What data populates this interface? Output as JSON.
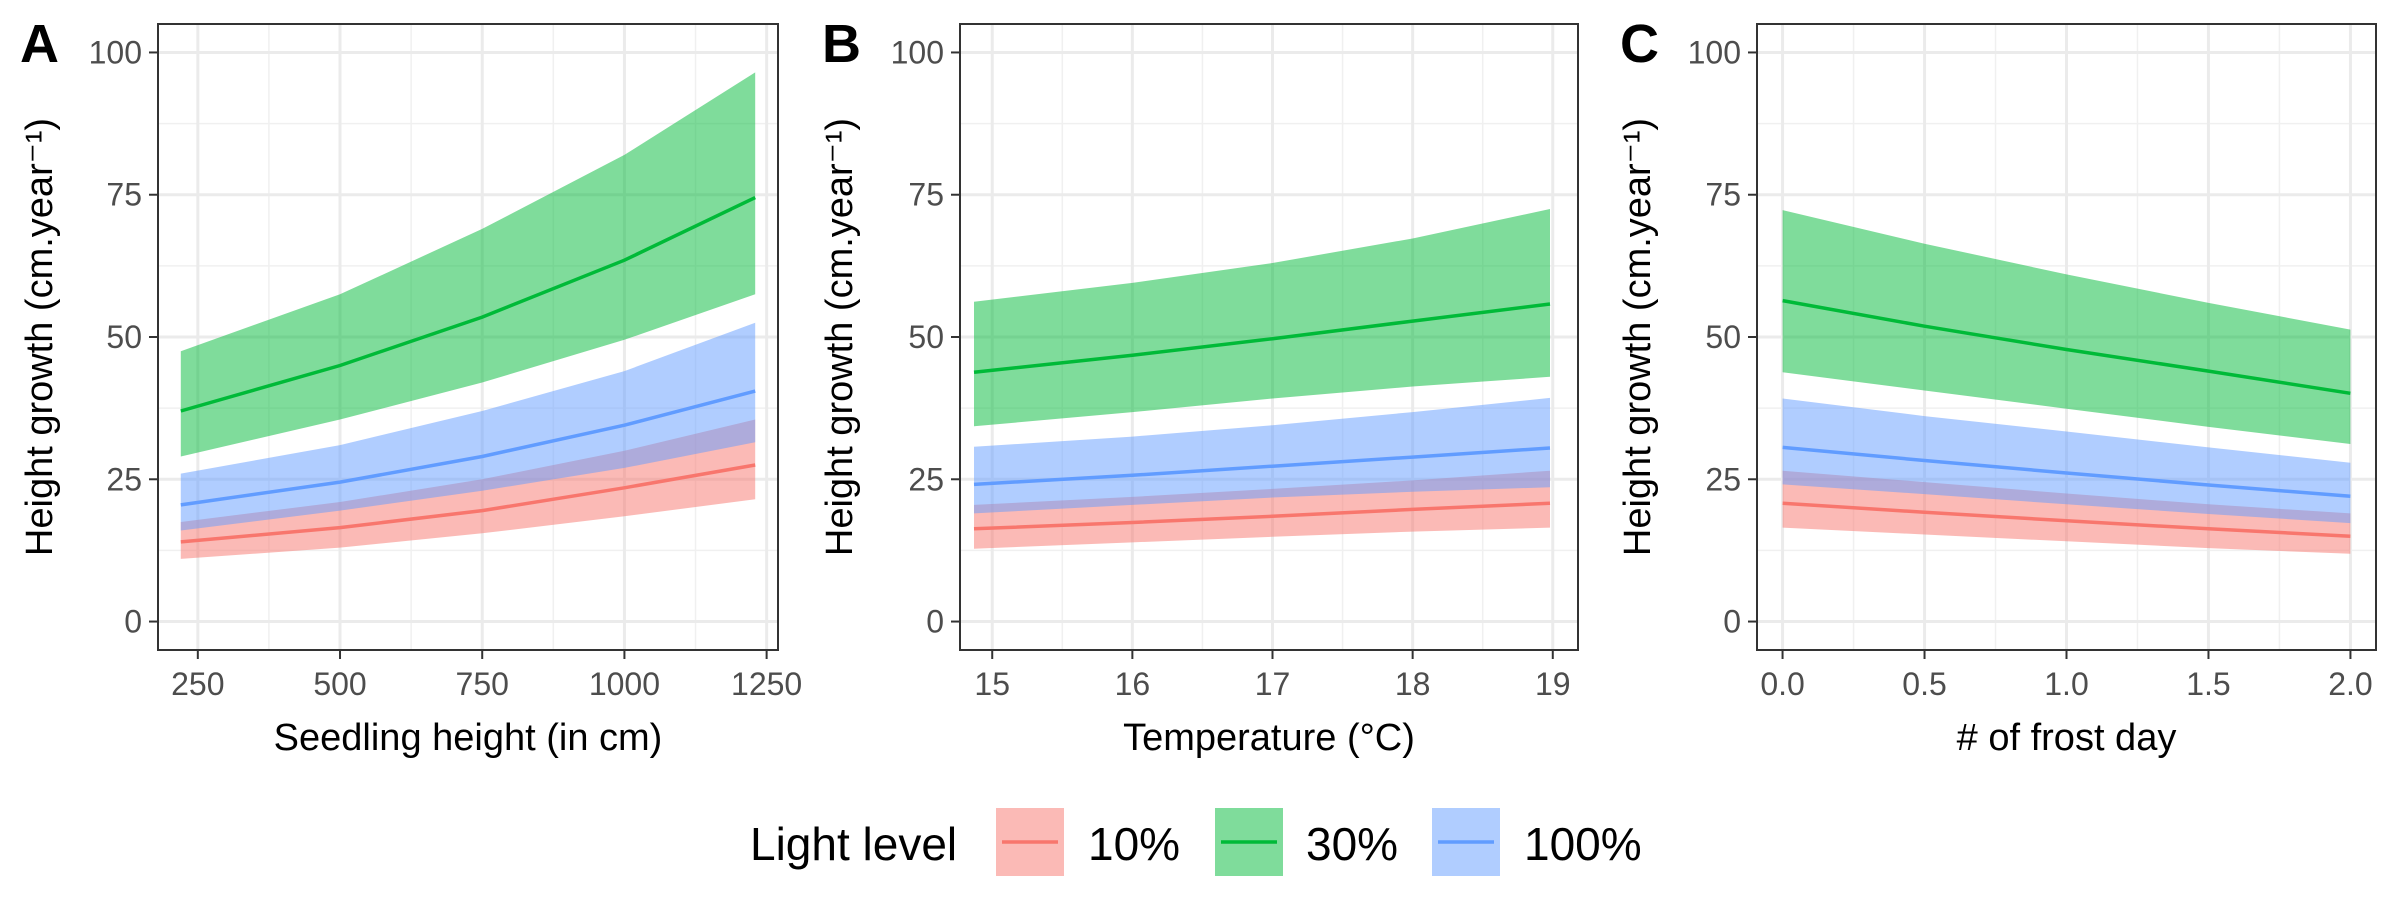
{
  "chart_data": [
    {
      "type": "line",
      "panel_label": "A",
      "xlabel": "Seedling height (in cm)",
      "ylabel": "Height growth (cm.year⁻¹)",
      "xlim": [
        180,
        1270
      ],
      "ylim": [
        -5,
        105
      ],
      "xticks": [
        250,
        500,
        750,
        1000,
        1250
      ],
      "xtick_labels": [
        "250",
        "500",
        "750",
        "1000",
        "1250"
      ],
      "yticks": [
        0,
        25,
        50,
        75,
        100
      ],
      "ytick_labels": [
        "0",
        "25",
        "50",
        "75",
        "100"
      ],
      "grid": true,
      "series": [
        {
          "key": "10",
          "x": [
            220,
            500,
            750,
            1000,
            1230
          ],
          "y": [
            14,
            16.5,
            19.5,
            23.5,
            27.5
          ],
          "lower": [
            11,
            13,
            15.5,
            18.5,
            21.5
          ],
          "upper": [
            17.5,
            21,
            25,
            30,
            35.5
          ]
        },
        {
          "key": "30",
          "x": [
            220,
            500,
            750,
            1000,
            1230
          ],
          "y": [
            37,
            45,
            53.5,
            63.5,
            74.5
          ],
          "lower": [
            29,
            35.5,
            42,
            49.5,
            57.5
          ],
          "upper": [
            47.5,
            57.5,
            69,
            82,
            96.5
          ]
        },
        {
          "key": "100",
          "x": [
            220,
            500,
            750,
            1000,
            1230
          ],
          "y": [
            20.5,
            24.5,
            29,
            34.5,
            40.5
          ],
          "lower": [
            16,
            19.5,
            23,
            27,
            31.5
          ],
          "upper": [
            26,
            31,
            37,
            44,
            52.5
          ]
        }
      ]
    },
    {
      "type": "line",
      "panel_label": "B",
      "xlabel": "Temperature (°C)",
      "ylabel": "Height growth (cm.year⁻¹)",
      "xlim": [
        14.77,
        19.18
      ],
      "ylim": [
        -5,
        105
      ],
      "xticks": [
        15,
        16,
        17,
        18,
        19
      ],
      "xtick_labels": [
        "15",
        "16",
        "17",
        "18",
        "19"
      ],
      "yticks": [
        0,
        25,
        50,
        75,
        100
      ],
      "ytick_labels": [
        "0",
        "25",
        "50",
        "75",
        "100"
      ],
      "grid": true,
      "series": [
        {
          "key": "10",
          "x": [
            14.87,
            16,
            17,
            18,
            18.98
          ],
          "y": [
            16.3,
            17.4,
            18.5,
            19.7,
            20.8
          ],
          "lower": [
            12.8,
            13.9,
            14.9,
            15.8,
            16.5
          ],
          "upper": [
            20.5,
            21.9,
            23.3,
            24.8,
            26.5
          ]
        },
        {
          "key": "30",
          "x": [
            14.87,
            16,
            17,
            18,
            18.98
          ],
          "y": [
            43.8,
            46.8,
            49.7,
            52.8,
            55.8
          ],
          "lower": [
            34.3,
            36.8,
            39.2,
            41.3,
            43
          ],
          "upper": [
            56.2,
            59.5,
            63,
            67.3,
            72.5
          ]
        },
        {
          "key": "100",
          "x": [
            14.87,
            16,
            17,
            18,
            18.98
          ],
          "y": [
            24.1,
            25.7,
            27.3,
            28.9,
            30.5
          ],
          "lower": [
            19,
            20.5,
            21.8,
            22.8,
            23.6
          ],
          "upper": [
            30.7,
            32.5,
            34.5,
            36.8,
            39.3
          ]
        }
      ]
    },
    {
      "type": "line",
      "panel_label": "C",
      "xlabel": "# of frost day",
      "ylabel": "Height growth (cm.year⁻¹)",
      "xlim": [
        -0.09,
        2.09
      ],
      "ylim": [
        -5,
        105
      ],
      "xticks": [
        0,
        0.5,
        1,
        1.5,
        2
      ],
      "xtick_labels": [
        "0.0",
        "0.5",
        "1.0",
        "1.5",
        "2.0"
      ],
      "yticks": [
        0,
        25,
        50,
        75,
        100
      ],
      "ytick_labels": [
        "0",
        "25",
        "50",
        "75",
        "100"
      ],
      "grid": true,
      "series": [
        {
          "key": "10",
          "x": [
            0,
            0.5,
            1,
            1.5,
            2
          ],
          "y": [
            20.8,
            19.2,
            17.7,
            16.3,
            15
          ],
          "lower": [
            16.5,
            15.3,
            14.1,
            12.9,
            11.9
          ],
          "upper": [
            26.5,
            24.5,
            22.5,
            20.6,
            19
          ]
        },
        {
          "key": "30",
          "x": [
            0,
            0.5,
            1,
            1.5,
            2
          ],
          "y": [
            56.4,
            51.9,
            47.8,
            44,
            40.1
          ],
          "lower": [
            43.8,
            40.6,
            37.4,
            34.2,
            31.2
          ],
          "upper": [
            72.3,
            66.4,
            61,
            56,
            51.3
          ]
        },
        {
          "key": "100",
          "x": [
            0,
            0.5,
            1,
            1.5,
            2
          ],
          "y": [
            30.6,
            28.3,
            26.1,
            24,
            22
          ],
          "lower": [
            24.1,
            22.4,
            20.6,
            18.9,
            17.3
          ],
          "upper": [
            39.2,
            36.1,
            33.4,
            30.6,
            27.9
          ]
        }
      ]
    }
  ],
  "legend": {
    "title": "Light level",
    "placement": "bottom",
    "items": [
      {
        "key": "10",
        "label": "10%",
        "line_color": "#F8766D",
        "fill_color": "#FCBBB6"
      },
      {
        "key": "30",
        "label": "30%",
        "line_color": "#00BA38",
        "fill_color": "#7FDC9B"
      },
      {
        "key": "100",
        "label": "100%",
        "line_color": "#619CFF",
        "fill_color": "#B0CDFF"
      }
    ]
  }
}
